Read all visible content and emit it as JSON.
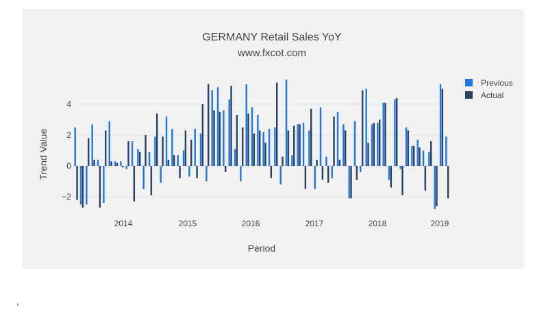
{
  "chart_data": {
    "type": "bar",
    "title": "GERMANY Retail Sales YoY",
    "subtitle": "www.fxcot.com",
    "xlabel": "Period",
    "ylabel": "Trend Value",
    "x_tick_labels": [
      "2014",
      "2015",
      "2016",
      "2017",
      "2018",
      "2019"
    ],
    "y_ticks": [
      -2,
      0,
      2,
      4
    ],
    "ylim": [
      -3,
      6
    ],
    "grid": true,
    "legend_position": "top-right",
    "series": [
      {
        "name": "Previous",
        "color": "#1f77e8",
        "values": [
          2.5,
          -2.5,
          -2.5,
          2.7,
          0.4,
          -2.4,
          2.9,
          0.3,
          0.3,
          -0.2,
          1.6,
          1.1,
          -1.5,
          0.9,
          1.9,
          -1.1,
          3.2,
          2.4,
          0.7,
          1.0,
          -0.7,
          2.4,
          2.1,
          -1.0,
          4.9,
          5.1,
          3.6,
          4.3,
          1.1,
          -1.0,
          5.3,
          3.8,
          3.3,
          2.2,
          2.4,
          2.5,
          -1.2,
          5.6,
          0.7,
          2.7,
          2.8,
          2.3,
          -1.5,
          3.8,
          0.6,
          -0.8,
          3.5,
          2.7,
          -2.1,
          2.9,
          -0.4,
          5.0,
          2.7,
          2.8,
          4.1,
          -0.9,
          4.3,
          -0.2,
          2.5,
          1.3,
          1.7,
          1.0,
          0.9,
          -2.8,
          5.3,
          1.9
        ]
      },
      {
        "name": "Actual",
        "color": "#2c4160",
        "values": [
          -2.2,
          -2.7,
          1.8,
          0.4,
          -2.7,
          2.3,
          0.3,
          0.2,
          -0.1,
          1.6,
          -2.3,
          0.9,
          2.0,
          -1.9,
          3.4,
          1.9,
          0.4,
          0.7,
          -0.8,
          2.3,
          1.7,
          -0.8,
          4.0,
          5.3,
          3.6,
          3.5,
          -0.4,
          5.2,
          3.3,
          2.5,
          3.4,
          2.1,
          2.3,
          1.5,
          -0.8,
          5.4,
          0.6,
          2.3,
          2.6,
          2.7,
          -1.5,
          3.7,
          0.4,
          -0.9,
          -1.1,
          3.2,
          0.4,
          2.3,
          -2.1,
          -0.9,
          4.9,
          1.5,
          2.8,
          3.0,
          4.1,
          -1.4,
          4.4,
          -1.9,
          2.3,
          1.3,
          1.2,
          -1.6,
          1.6,
          -2.6,
          5.0,
          -2.1
        ]
      }
    ]
  }
}
